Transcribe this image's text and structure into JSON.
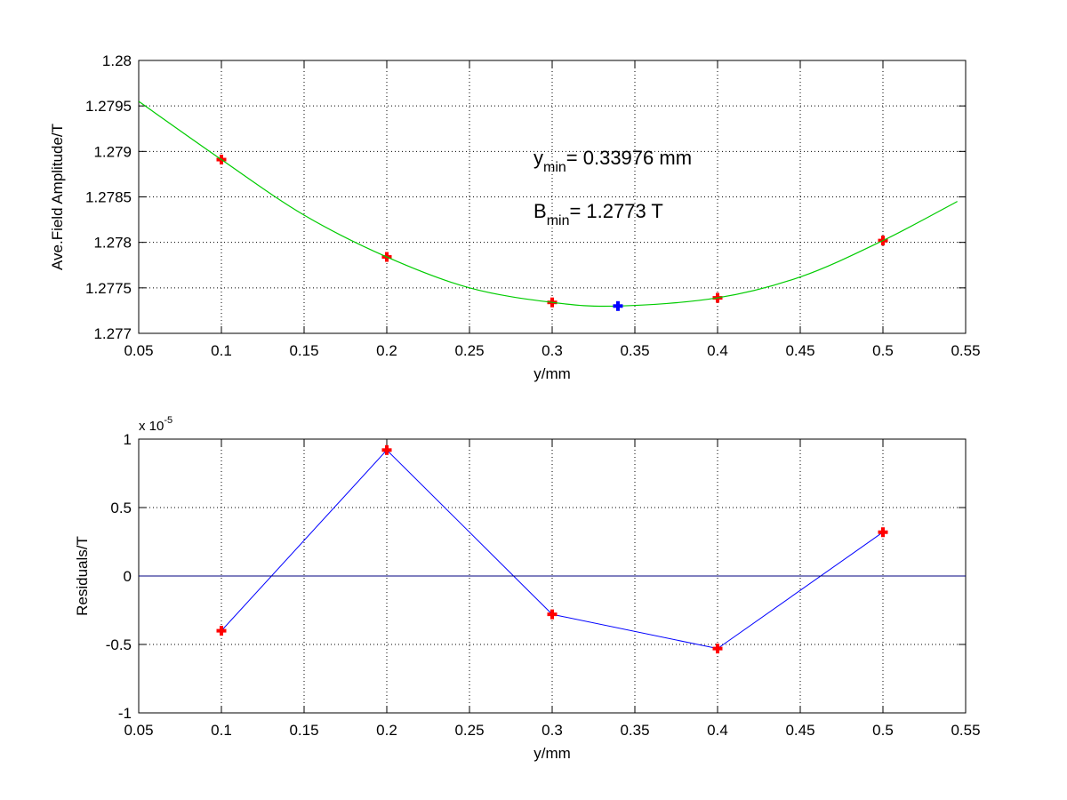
{
  "chart_data": [
    {
      "type": "line",
      "xlabel": "y/mm",
      "ylabel": "Ave.Field Amplitude/T",
      "xlim": [
        0.05,
        0.55
      ],
      "ylim": [
        1.277,
        1.28
      ],
      "xticks": [
        "0.05",
        "0.1",
        "0.15",
        "0.2",
        "0.25",
        "0.3",
        "0.35",
        "0.4",
        "0.45",
        "0.5",
        "0.55"
      ],
      "yticks": [
        "1.277",
        "1.2775",
        "1.278",
        "1.2785",
        "1.279",
        "1.2795",
        "1.28"
      ],
      "grid": true,
      "series": [
        {
          "kind": "points",
          "color": "#ff0000",
          "marker": "plus",
          "x": [
            0.1,
            0.2,
            0.3,
            0.4,
            0.5
          ],
          "y": [
            1.27891,
            1.27784,
            1.27734,
            1.27739,
            1.27802
          ]
        },
        {
          "kind": "fit-curve",
          "color": "#00cc00",
          "x": [
            0.05,
            0.1,
            0.15,
            0.2,
            0.25,
            0.3,
            0.34,
            0.4,
            0.45,
            0.5,
            0.545
          ],
          "y": [
            1.27955,
            1.27891,
            1.2783,
            1.27784,
            1.2775,
            1.27734,
            1.2773,
            1.27739,
            1.27762,
            1.27802,
            1.27845
          ]
        },
        {
          "kind": "minimum",
          "color": "#0000ff",
          "marker": "plus",
          "x": [
            0.33976
          ],
          "y": [
            1.2773
          ]
        }
      ],
      "annotations": [
        {
          "main": "y",
          "sub": "min",
          "text": "= 0.33976 mm"
        },
        {
          "main": "B",
          "sub": "min",
          "text": "= 1.2773 T"
        }
      ]
    },
    {
      "type": "line",
      "xlabel": "y/mm",
      "ylabel": "Residuals/T",
      "multiplier": {
        "base": "x 10",
        "exp": "-5"
      },
      "xlim": [
        0.05,
        0.55
      ],
      "ylim": [
        -1,
        1
      ],
      "xticks": [
        "0.05",
        "0.1",
        "0.15",
        "0.2",
        "0.25",
        "0.3",
        "0.35",
        "0.4",
        "0.45",
        "0.5",
        "0.55"
      ],
      "yticks": [
        "-1",
        "-0.5",
        "0",
        "0.5",
        "1"
      ],
      "grid": true,
      "series": [
        {
          "kind": "residuals",
          "color": "#0000ff",
          "marker_color": "#ff0000",
          "marker": "plus",
          "x": [
            0.1,
            0.2,
            0.3,
            0.4,
            0.5
          ],
          "y": [
            -0.4,
            0.92,
            -0.28,
            -0.53,
            0.32
          ]
        },
        {
          "kind": "zero-line",
          "color": "#000080",
          "x": [
            0.05,
            0.55
          ],
          "y": [
            0,
            0
          ]
        }
      ]
    }
  ]
}
